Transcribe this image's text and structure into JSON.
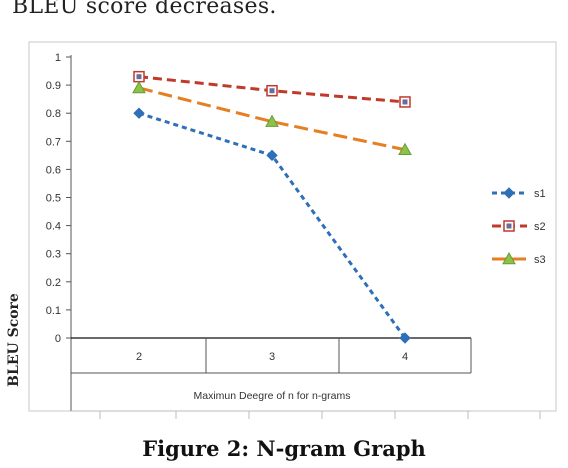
{
  "page": {
    "top_text": "BLEU score decreases.",
    "caption": "Figure 2: N-gram Graph"
  },
  "chart_data": {
    "type": "line",
    "title": "",
    "xlabel": "Maximun Deegre of n for n-grams",
    "ylabel": "BLEU Score",
    "categories": [
      "2",
      "3",
      "4"
    ],
    "ylim": [
      0,
      1
    ],
    "yticks": [
      "0",
      "0.1",
      "0.2",
      "0.3",
      "0.4",
      "0.5",
      "0.6",
      "0.7",
      "0.8",
      "0.9",
      "1"
    ],
    "grid": false,
    "legend": "right",
    "series": [
      {
        "name": "s1",
        "values": [
          0.8,
          0.65,
          0.0
        ],
        "color": "#2e6fb7",
        "marker": "diamond",
        "dash": "short-dash"
      },
      {
        "name": "s2",
        "values": [
          0.93,
          0.88,
          0.84
        ],
        "color": "#c0392b",
        "marker": "square",
        "dash": "dash"
      },
      {
        "name": "s3",
        "values": [
          0.89,
          0.77,
          0.67
        ],
        "color": "#e67e22",
        "marker": "triangle",
        "dash": "long-dash"
      }
    ]
  }
}
